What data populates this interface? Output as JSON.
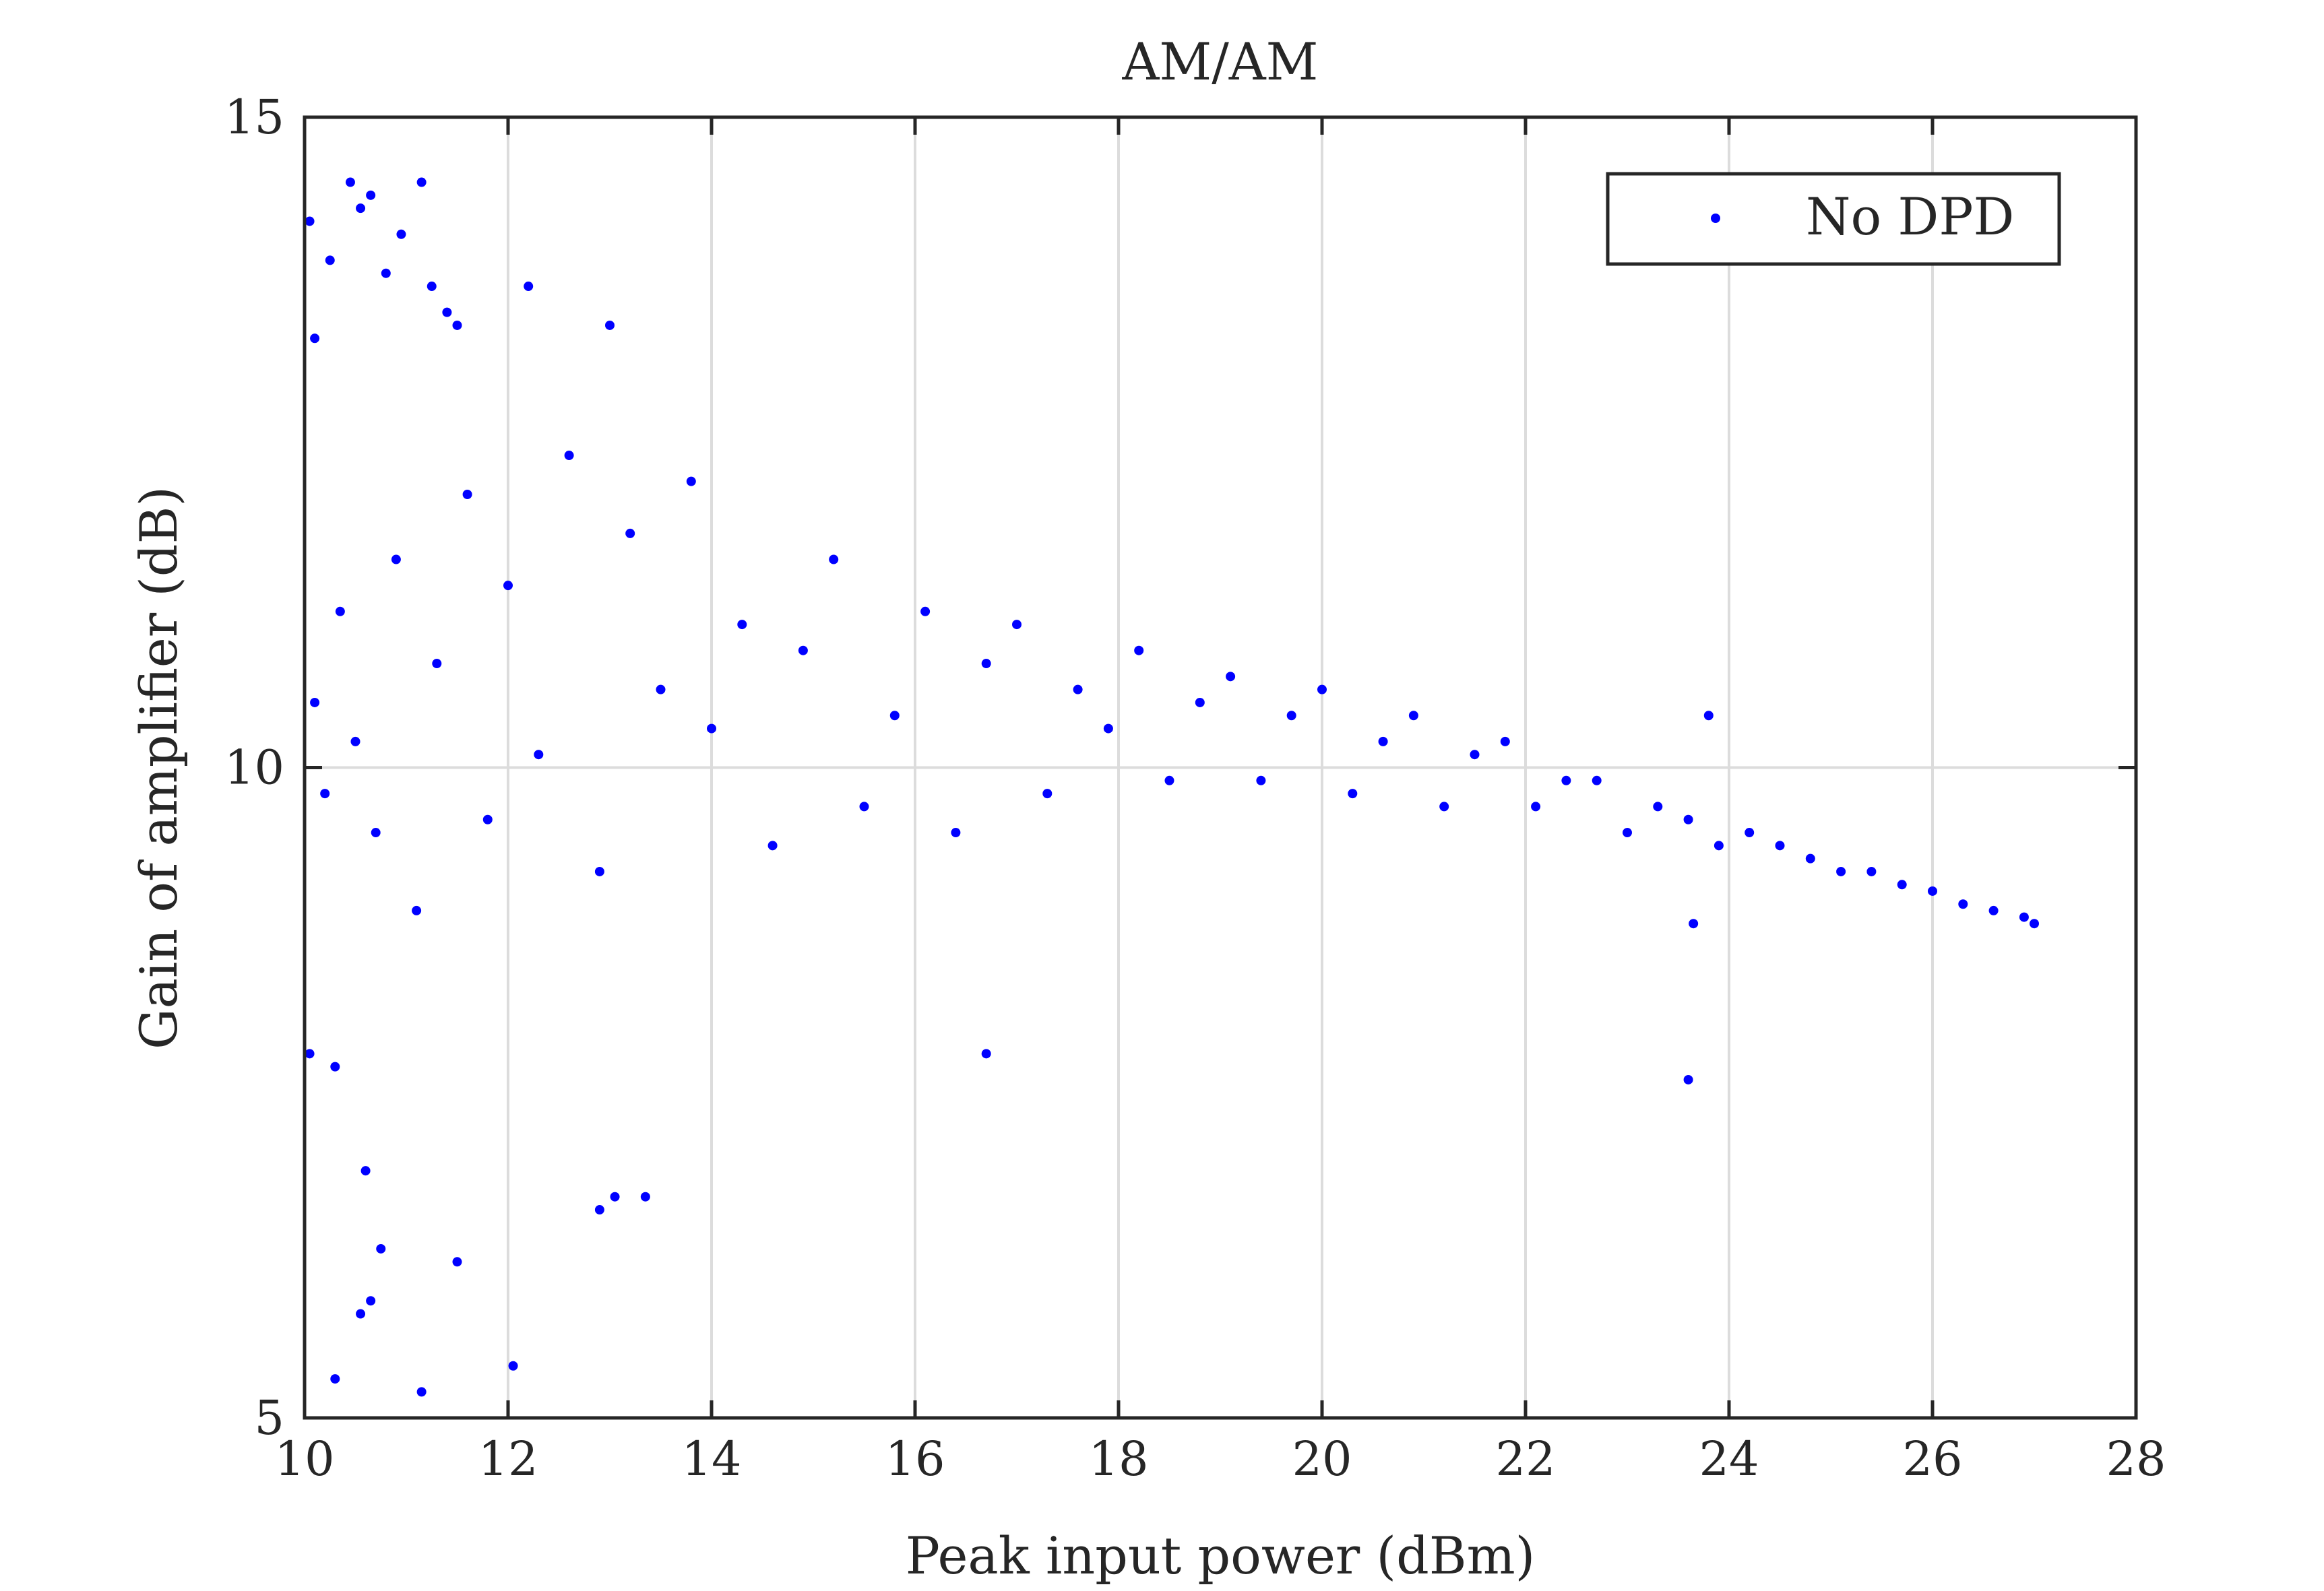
{
  "chart_data": {
    "type": "scatter",
    "title": "AM/AM",
    "xlabel": "Peak input power (dBm)",
    "ylabel": "Gain of amplifier (dB)",
    "xlim": [
      10,
      28
    ],
    "ylim": [
      5,
      15
    ],
    "xticks": [
      10,
      12,
      14,
      16,
      18,
      20,
      22,
      24,
      26,
      28
    ],
    "yticks": [
      5,
      10,
      15
    ],
    "xtick_labels": [
      "10",
      "12",
      "14",
      "16",
      "18",
      "20",
      "22",
      "24",
      "26",
      "28"
    ],
    "ytick_labels": [
      "5",
      "10",
      "15"
    ],
    "grid": true,
    "legend": {
      "position": "top-right"
    },
    "colors": {
      "series": "#0000ff",
      "axes": "#262626",
      "grid": "#dcdcdc"
    },
    "series": [
      {
        "name": "No DPD",
        "color": "#0000ff",
        "x": [
          10.05,
          10.1,
          10.25,
          10.45,
          10.55,
          10.65,
          10.8,
          10.95,
          11.15,
          11.25,
          11.4,
          11.5,
          12.2,
          13.0,
          10.05,
          10.3,
          10.6,
          10.75,
          11.5,
          12.05,
          11.15,
          10.3,
          10.55,
          10.65,
          12.9,
          13.35,
          13.05,
          23.6,
          23.8,
          23.65,
          16.7,
          10.1,
          10.2,
          10.35,
          10.5,
          10.7,
          10.9,
          11.1,
          11.3,
          11.6,
          11.8,
          12.0,
          12.3,
          12.6,
          12.9,
          13.2,
          13.5,
          13.8,
          14.0,
          14.3,
          14.6,
          14.9,
          15.2,
          15.5,
          15.8,
          16.1,
          16.4,
          16.7,
          17.0,
          17.3,
          17.6,
          17.9,
          18.2,
          18.5,
          18.8,
          19.1,
          19.4,
          19.7,
          20.0,
          20.3,
          20.6,
          20.9,
          21.2,
          21.5,
          21.8,
          22.1,
          22.4,
          22.7,
          23.0,
          23.3,
          23.6,
          23.9,
          24.2,
          24.5,
          24.8,
          25.1,
          25.4,
          25.7,
          26.0,
          26.3,
          26.6,
          26.9,
          27.0
        ],
        "y": [
          14.2,
          13.3,
          13.9,
          14.5,
          14.3,
          14.4,
          13.8,
          14.1,
          14.5,
          13.7,
          13.5,
          13.4,
          13.7,
          13.4,
          7.8,
          7.7,
          6.9,
          6.3,
          6.2,
          5.4,
          5.2,
          5.3,
          5.8,
          5.9,
          6.6,
          6.7,
          6.7,
          7.6,
          10.4,
          8.8,
          7.8,
          10.5,
          9.8,
          11.2,
          10.2,
          9.5,
          11.6,
          8.9,
          10.8,
          12.1,
          9.6,
          11.4,
          10.1,
          12.4,
          9.2,
          11.8,
          10.6,
          12.2,
          10.3,
          11.1,
          9.4,
          10.9,
          11.6,
          9.7,
          10.4,
          11.2,
          9.5,
          10.8,
          11.1,
          9.8,
          10.6,
          10.3,
          10.9,
          9.9,
          10.5,
          10.7,
          9.9,
          10.4,
          10.6,
          9.8,
          10.2,
          10.4,
          9.7,
          10.1,
          10.2,
          9.7,
          9.9,
          9.9,
          9.5,
          9.7,
          9.6,
          9.4,
          9.5,
          9.4,
          9.3,
          9.2,
          9.2,
          9.1,
          9.05,
          8.95,
          8.9,
          8.85,
          8.8
        ]
      }
    ]
  }
}
